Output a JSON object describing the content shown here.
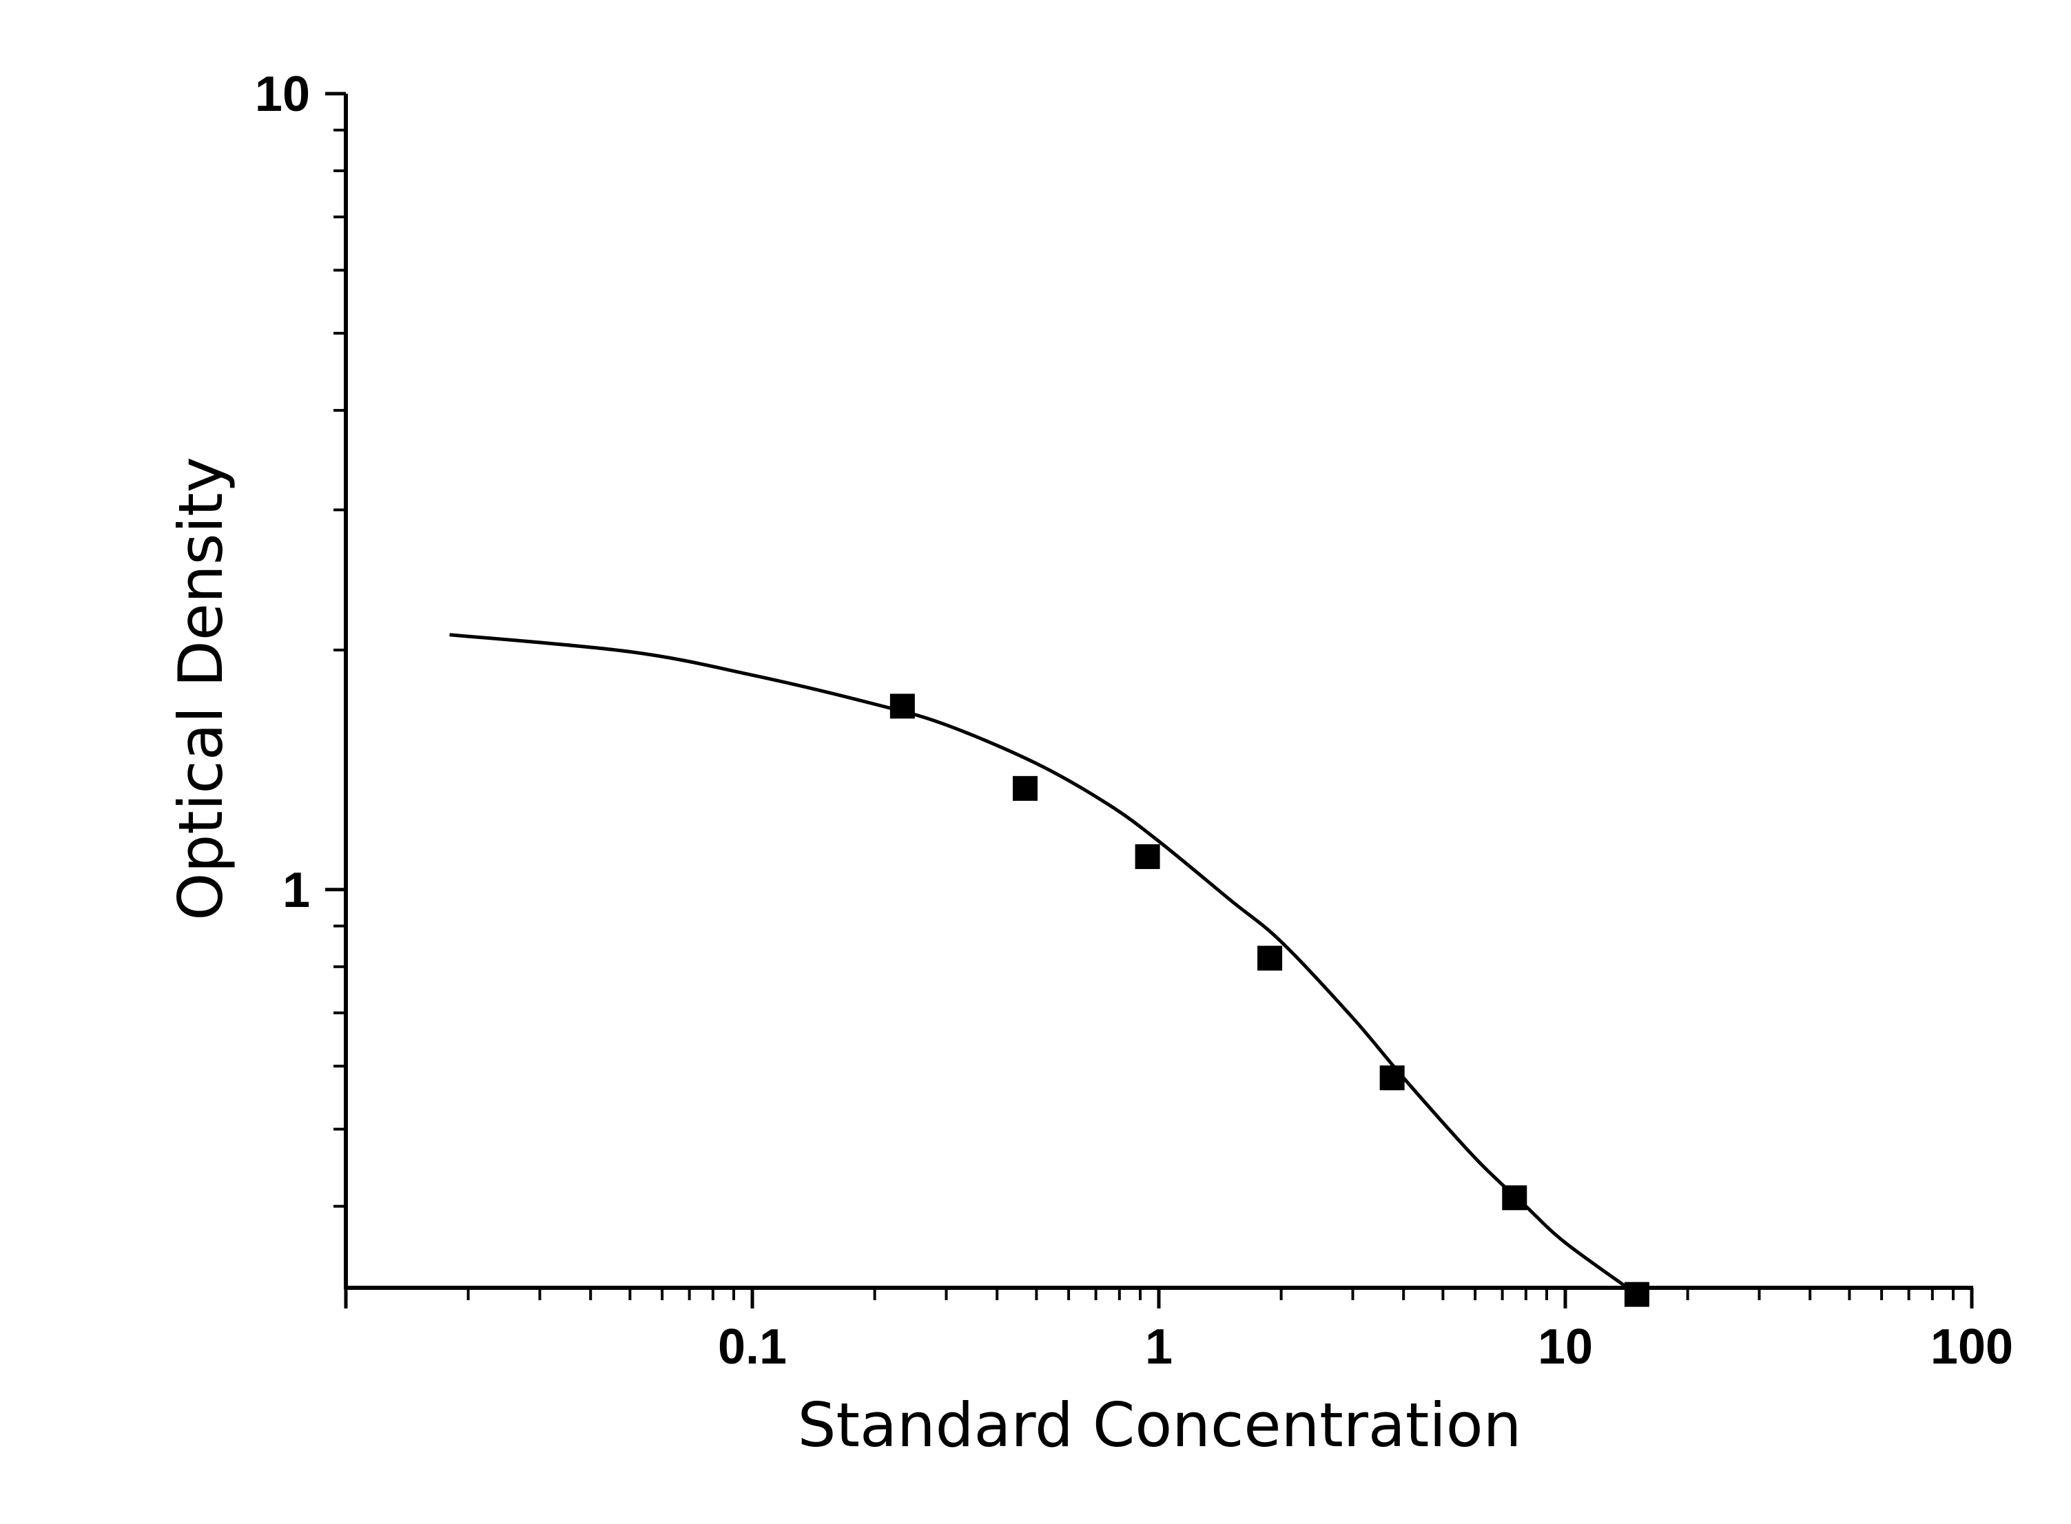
{
  "chart_data": {
    "type": "scatter",
    "xlabel": "Standard Concentration",
    "ylabel": "Optical Density",
    "x_scale": "log",
    "y_scale": "log",
    "xlim": [
      0.01,
      100
    ],
    "ylim": [
      0.316,
      10
    ],
    "x_ticks": [
      {
        "value": 0.1,
        "label": "0.1"
      },
      {
        "value": 1,
        "label": "1"
      },
      {
        "value": 10,
        "label": "10"
      },
      {
        "value": 100,
        "label": "100"
      }
    ],
    "y_ticks": [
      {
        "value": 1,
        "label": "1"
      },
      {
        "value": 10,
        "label": "10"
      }
    ],
    "grid": false,
    "colors": {
      "marker": "#000000",
      "curve": "#000000",
      "axis": "#000000"
    },
    "series": [
      {
        "marker": "square",
        "x": [
          0.234,
          0.469,
          0.938,
          1.875,
          3.75,
          7.5,
          15
        ],
        "y": [
          1.7,
          1.34,
          1.1,
          0.82,
          0.58,
          0.41,
          0.31
        ]
      }
    ],
    "fit_curve": {
      "x": [
        0.018,
        0.05,
        0.1,
        0.2,
        0.3,
        0.5,
        0.75,
        1.0,
        1.5,
        2.0,
        3.0,
        4.0,
        6.0,
        8.0,
        10.0,
        15.0
      ],
      "y": [
        2.09,
        1.99,
        1.86,
        1.71,
        1.61,
        1.44,
        1.28,
        1.15,
        0.97,
        0.86,
        0.69,
        0.58,
        0.46,
        0.4,
        0.36,
        0.31
      ]
    }
  }
}
